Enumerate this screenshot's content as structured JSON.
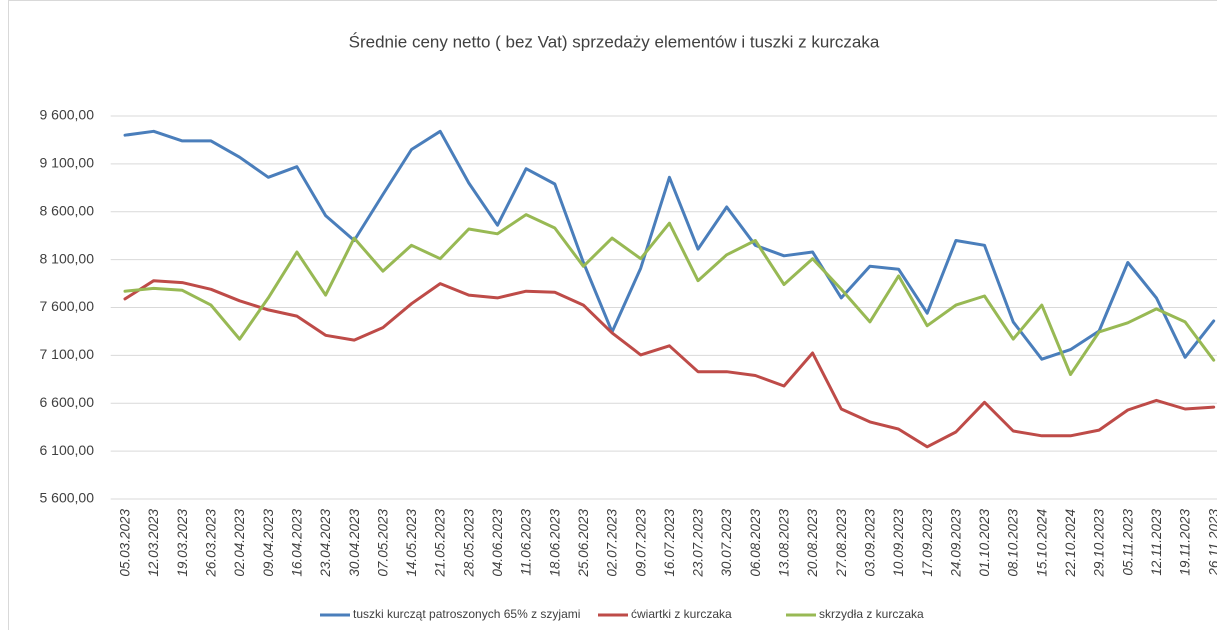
{
  "chart_data": {
    "type": "line",
    "title": "Średnie ceny netto ( bez Vat) sprzedaży elementów i tuszki z kurczaka",
    "categories": [
      "05.03.2023",
      "12.03.2023",
      "19.03.2023",
      "26.03.2023",
      "02.04.2023",
      "09.04.2023",
      "16.04.2023",
      "23.04.2023",
      "30.04.2023",
      "07.05.2023",
      "14.05.2023",
      "21.05.2023",
      "28.05.2023",
      "04.06.2023",
      "11.06.2023",
      "18.06.2023",
      "25.06.2023",
      "02.07.2023",
      "09.07.2023",
      "16.07.2023",
      "23.07.2023",
      "30.07.2023",
      "06.08.2023",
      "13.08.2023",
      "20.08.2023",
      "27.08.2023",
      "03.09.2023",
      "10.09.2023",
      "17.09.2023",
      "24.09.2023",
      "01.10.2023",
      "08.10.2023",
      "15.10.2024",
      "22.10.2024",
      "29.10.2023",
      "05.11.2023",
      "12.11.2023",
      "19.11.2023",
      "26.11.2023"
    ],
    "series": [
      {
        "name": "tuszki kurcząt patroszonych 65% z szyjami",
        "color": "#4a7ebb",
        "values": [
          9400,
          9440,
          9340,
          9340,
          9170,
          8960,
          9070,
          8560,
          8300,
          8780,
          9250,
          9440,
          8900,
          8460,
          9050,
          8890,
          8070,
          7345,
          8010,
          8960,
          8210,
          8650,
          8250,
          8140,
          8180,
          7700,
          8030,
          8000,
          7540,
          8300,
          8250,
          7450,
          7060,
          7160,
          7355,
          8070,
          7700,
          7080,
          7460
        ]
      },
      {
        "name": "ćwiartki z kurczaka",
        "color": "#be4b48",
        "values": [
          7690,
          7880,
          7860,
          7790,
          7670,
          7575,
          7510,
          7310,
          7260,
          7390,
          7640,
          7850,
          7730,
          7700,
          7770,
          7760,
          7625,
          7335,
          7105,
          7200,
          6930,
          6930,
          6890,
          6780,
          7125,
          6540,
          6405,
          6330,
          6145,
          6300,
          6610,
          6310,
          6260,
          6260,
          6320,
          6530,
          6630,
          6540,
          6560
        ]
      },
      {
        "name": "skrzydła z kurczaka",
        "color": "#98b954",
        "values": [
          7770,
          7800,
          7780,
          7625,
          7270,
          7700,
          8180,
          7730,
          8325,
          7980,
          8250,
          8110,
          8420,
          8370,
          8570,
          8430,
          8030,
          8325,
          8110,
          8480,
          7880,
          8150,
          8300,
          7840,
          8110,
          7790,
          7450,
          7930,
          7410,
          7625,
          7720,
          7270,
          7625,
          6900,
          7345,
          7440,
          7585,
          7450,
          7050
        ]
      }
    ],
    "ylim": [
      5600,
      9600
    ],
    "yticks": [
      {
        "value": 5600,
        "label": "5 600,00"
      },
      {
        "value": 6100,
        "label": "6 100,00"
      },
      {
        "value": 6600,
        "label": "6 600,00"
      },
      {
        "value": 7100,
        "label": "7 100,00"
      },
      {
        "value": 7600,
        "label": "7 600,00"
      },
      {
        "value": 8100,
        "label": "8 100,00"
      },
      {
        "value": 8600,
        "label": "8 600,00"
      },
      {
        "value": 9100,
        "label": "9 100,00"
      },
      {
        "value": 9600,
        "label": "9 600,00"
      }
    ],
    "grid": true,
    "legend": "bottom"
  }
}
